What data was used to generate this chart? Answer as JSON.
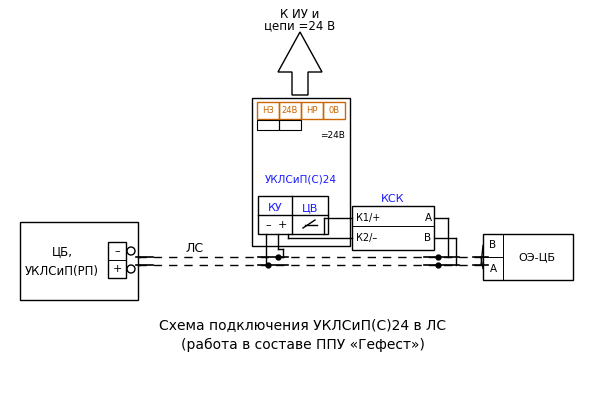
{
  "title_line1": "Схема подключения УКЛСиП(С)24 в ЛС",
  "title_line2": "(работа в составе ППУ «Гефест»)",
  "bg_color": "#ffffff",
  "line_color": "#000000",
  "text_color_blue": "#1a1aff",
  "text_color_orange": "#cc6600",
  "figsize": [
    6.07,
    3.95
  ],
  "dpi": 100,
  "top_label_line1": "К ИУ и",
  "top_label_line2": "цепи =24 В",
  "ukl_label": "УКЛСиП(С)24",
  "ku_label": "КУ",
  "tsv_label": "ЦВ",
  "minus_label": "–",
  "plus_label": "+",
  "ksk_label": "КСК",
  "k1_label": "К1/+",
  "k2_label": "К2/–",
  "a_label": "А",
  "b_label": "В",
  "ls_label": "ЛС",
  "cb_label1": "ЦБ,",
  "cb_label2": "УКЛСиП(РП)",
  "oe_label": "ОЭ-ЦБ",
  "n3_label": "НЗ",
  "v24_label": "24В",
  "np_label": "НР",
  "ov_label": "0В",
  "eq24_label": "=24В",
  "a_right_label": "А",
  "b_right_label": "В"
}
